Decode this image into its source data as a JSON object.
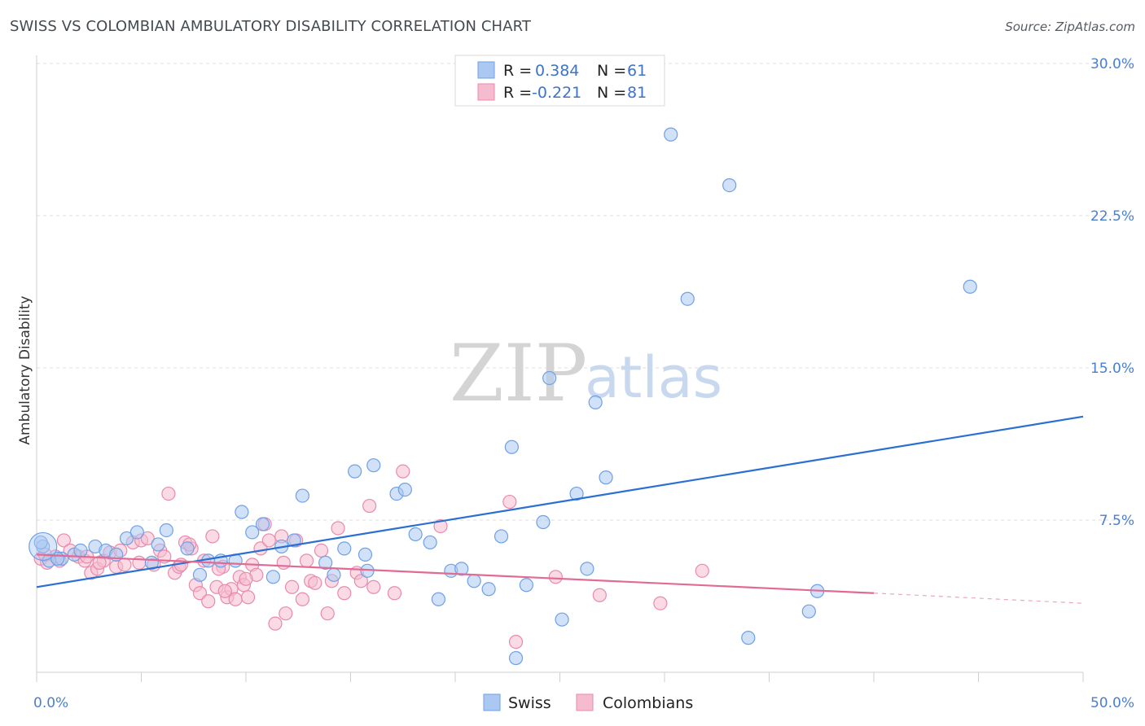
{
  "title": "SWISS VS COLOMBIAN AMBULATORY DISABILITY CORRELATION CHART",
  "source": "Source: ZipAtlas.com",
  "watermark": {
    "zip": "ZIP",
    "atlas": "atlas"
  },
  "colors": {
    "swiss": "#6fa0e6",
    "swiss_fill": "#aac8f2",
    "colombians": "#e98aaa",
    "colombians_fill": "#f5bcd0",
    "swiss_line": "#2a6fd1",
    "colombians_line": "#e06b95",
    "tick": "#4a7fd0"
  },
  "legend": {
    "swiss": {
      "r_label": "R =",
      "r_value": "0.384",
      "n_label": "N =",
      "n_value": "61"
    },
    "colombians": {
      "r_label": "R =",
      "r_value": "-0.221",
      "n_label": "N =",
      "n_value": "81"
    }
  },
  "bottom_legend": {
    "swiss": "Swiss",
    "colombians": "Colombians"
  },
  "chart_data": {
    "type": "scatter",
    "ylabel": "Ambulatory Disability",
    "xlim": [
      0,
      50
    ],
    "ylim": [
      0,
      30
    ],
    "x_tick_labels": [
      "0.0%",
      "50.0%"
    ],
    "y_ticks": [
      7.5,
      15.0,
      22.5,
      30.0
    ],
    "y_tick_labels": [
      "7.5%",
      "15.0%",
      "22.5%",
      "30.0%"
    ],
    "grid": "horizontal dashed",
    "legend_position": "top-center",
    "series": [
      {
        "name": "Swiss",
        "trend": {
          "x": [
            0,
            50
          ],
          "y": [
            4.2,
            12.6
          ]
        },
        "points": [
          [
            0.3,
            6.2
          ],
          [
            0.6,
            5.5
          ],
          [
            1.2,
            5.6
          ],
          [
            1.8,
            5.8
          ],
          [
            2.8,
            6.2
          ],
          [
            3.3,
            6.0
          ],
          [
            3.8,
            5.8
          ],
          [
            4.3,
            6.6
          ],
          [
            4.8,
            6.9
          ],
          [
            5.5,
            5.4
          ],
          [
            5.8,
            6.3
          ],
          [
            6.2,
            7.0
          ],
          [
            7.2,
            6.1
          ],
          [
            7.8,
            4.8
          ],
          [
            8.2,
            5.5
          ],
          [
            8.8,
            5.5
          ],
          [
            9.5,
            5.5
          ],
          [
            9.8,
            7.9
          ],
          [
            10.3,
            6.9
          ],
          [
            10.8,
            7.3
          ],
          [
            11.3,
            4.7
          ],
          [
            11.7,
            6.2
          ],
          [
            12.3,
            6.5
          ],
          [
            12.7,
            8.7
          ],
          [
            13.8,
            5.4
          ],
          [
            14.2,
            4.8
          ],
          [
            14.7,
            6.1
          ],
          [
            15.2,
            9.9
          ],
          [
            15.7,
            5.8
          ],
          [
            15.8,
            5.0
          ],
          [
            16.1,
            10.2
          ],
          [
            17.2,
            8.8
          ],
          [
            17.6,
            9.0
          ],
          [
            18.1,
            6.8
          ],
          [
            18.8,
            6.4
          ],
          [
            19.2,
            3.6
          ],
          [
            19.8,
            5.0
          ],
          [
            20.3,
            5.1
          ],
          [
            20.9,
            4.5
          ],
          [
            21.6,
            4.1
          ],
          [
            22.2,
            6.7
          ],
          [
            22.7,
            11.1
          ],
          [
            23.4,
            4.3
          ],
          [
            24.2,
            7.4
          ],
          [
            24.5,
            14.5
          ],
          [
            25.1,
            2.6
          ],
          [
            25.8,
            8.8
          ],
          [
            26.3,
            5.1
          ],
          [
            26.7,
            13.3
          ],
          [
            27.2,
            9.6
          ],
          [
            30.3,
            26.5
          ],
          [
            31.1,
            18.4
          ],
          [
            33.1,
            24.0
          ],
          [
            34.0,
            1.7
          ],
          [
            36.9,
            3.0
          ],
          [
            37.3,
            4.0
          ],
          [
            44.6,
            19.0
          ],
          [
            22.9,
            0.7
          ],
          [
            2.1,
            6.0
          ],
          [
            1.0,
            5.6
          ],
          [
            0.2,
            6.4
          ]
        ]
      },
      {
        "name": "Colombians",
        "trend": {
          "x": [
            0,
            40
          ],
          "y": [
            5.8,
            3.9
          ]
        },
        "trend_dashed": {
          "x": [
            40,
            50
          ],
          "y": [
            3.9,
            3.4
          ]
        },
        "points": [
          [
            0.2,
            5.6
          ],
          [
            0.5,
            5.4
          ],
          [
            0.9,
            5.7
          ],
          [
            1.3,
            6.5
          ],
          [
            1.6,
            6.0
          ],
          [
            2.0,
            5.7
          ],
          [
            2.3,
            5.5
          ],
          [
            2.6,
            4.9
          ],
          [
            2.9,
            5.1
          ],
          [
            3.2,
            5.5
          ],
          [
            3.5,
            5.9
          ],
          [
            3.8,
            5.2
          ],
          [
            4.2,
            5.3
          ],
          [
            4.6,
            6.4
          ],
          [
            5.0,
            6.5
          ],
          [
            5.3,
            6.6
          ],
          [
            5.6,
            5.3
          ],
          [
            5.9,
            6.0
          ],
          [
            6.1,
            5.7
          ],
          [
            6.3,
            8.8
          ],
          [
            6.6,
            4.9
          ],
          [
            6.8,
            5.2
          ],
          [
            7.1,
            6.4
          ],
          [
            7.4,
            6.1
          ],
          [
            7.6,
            4.3
          ],
          [
            7.8,
            3.9
          ],
          [
            8.0,
            5.5
          ],
          [
            8.2,
            3.5
          ],
          [
            8.4,
            6.7
          ],
          [
            8.6,
            4.2
          ],
          [
            8.9,
            5.2
          ],
          [
            9.1,
            3.7
          ],
          [
            9.3,
            4.1
          ],
          [
            9.5,
            3.6
          ],
          [
            9.7,
            4.7
          ],
          [
            9.9,
            4.3
          ],
          [
            10.1,
            3.7
          ],
          [
            10.3,
            5.3
          ],
          [
            10.5,
            4.8
          ],
          [
            10.7,
            6.1
          ],
          [
            10.9,
            7.3
          ],
          [
            11.1,
            6.5
          ],
          [
            11.4,
            2.4
          ],
          [
            11.7,
            6.7
          ],
          [
            11.9,
            2.9
          ],
          [
            12.2,
            4.2
          ],
          [
            12.4,
            6.5
          ],
          [
            12.7,
            3.6
          ],
          [
            12.9,
            5.5
          ],
          [
            13.1,
            4.5
          ],
          [
            13.3,
            4.4
          ],
          [
            13.9,
            2.9
          ],
          [
            14.1,
            4.5
          ],
          [
            14.4,
            7.1
          ],
          [
            14.7,
            3.9
          ],
          [
            15.3,
            4.9
          ],
          [
            15.5,
            4.5
          ],
          [
            15.9,
            8.2
          ],
          [
            16.1,
            4.2
          ],
          [
            17.1,
            3.9
          ],
          [
            17.5,
            9.9
          ],
          [
            19.3,
            7.2
          ],
          [
            22.6,
            8.4
          ],
          [
            22.9,
            1.5
          ],
          [
            24.8,
            4.7
          ],
          [
            26.9,
            3.8
          ],
          [
            29.8,
            3.4
          ],
          [
            31.8,
            5.0
          ],
          [
            0.4,
            5.8
          ],
          [
            1.1,
            5.5
          ],
          [
            2.4,
            5.7
          ],
          [
            3.0,
            5.4
          ],
          [
            4.0,
            6.0
          ],
          [
            4.9,
            5.4
          ],
          [
            6.9,
            5.3
          ],
          [
            7.3,
            6.3
          ],
          [
            8.7,
            5.1
          ],
          [
            9.0,
            4.0
          ],
          [
            10.0,
            4.6
          ],
          [
            11.8,
            5.4
          ],
          [
            13.6,
            6.0
          ]
        ]
      }
    ]
  }
}
